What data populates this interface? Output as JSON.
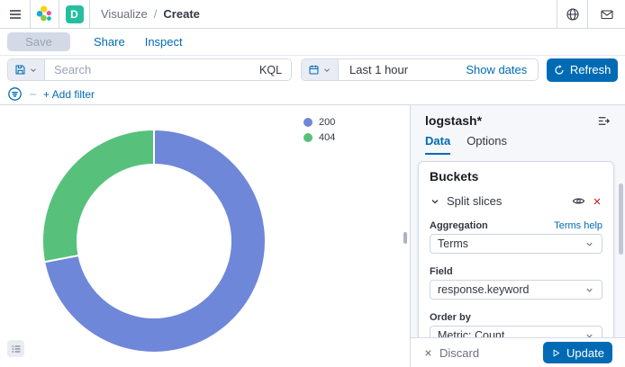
{
  "topnav": {
    "breadcrumb": {
      "section": "Visualize",
      "separator": "/",
      "current": "Create"
    },
    "space_badge": "D"
  },
  "toolbar": {
    "save_label": "Save",
    "share_label": "Share",
    "inspect_label": "Inspect"
  },
  "querybar": {
    "search_placeholder": "Search",
    "language_label": "KQL",
    "time_value": "Last 1 hour",
    "show_dates_label": "Show dates",
    "refresh_label": "Refresh",
    "add_filter_label": "+ Add filter"
  },
  "sidebar": {
    "index_pattern": "logstash*",
    "tabs": [
      {
        "label": "Data"
      },
      {
        "label": "Options"
      }
    ],
    "buckets": {
      "title": "Buckets",
      "split_slices_label": "Split slices",
      "aggregation_label": "Aggregation",
      "terms_help_label": "Terms help",
      "aggregation_value": "Terms",
      "field_label": "Field",
      "field_value": "response.keyword",
      "order_by_label": "Order by",
      "order_by_value": "Metric: Count"
    },
    "footer": {
      "discard_label": "Discard",
      "update_label": "Update"
    }
  },
  "chart_data": {
    "type": "pie",
    "donut": true,
    "title": "",
    "labels": [
      "200",
      "404"
    ],
    "values": [
      72,
      28
    ],
    "unit": "percent of total (estimated from arc angles, ~260deg vs ~100deg)",
    "colors": [
      "#6F87D8",
      "#57C17B"
    ],
    "legend_position": "top-right",
    "start_angle_deg": 0
  },
  "colors": {
    "primary": "#006BB4",
    "danger": "#BD271E",
    "space_badge": "#25BEA0"
  }
}
